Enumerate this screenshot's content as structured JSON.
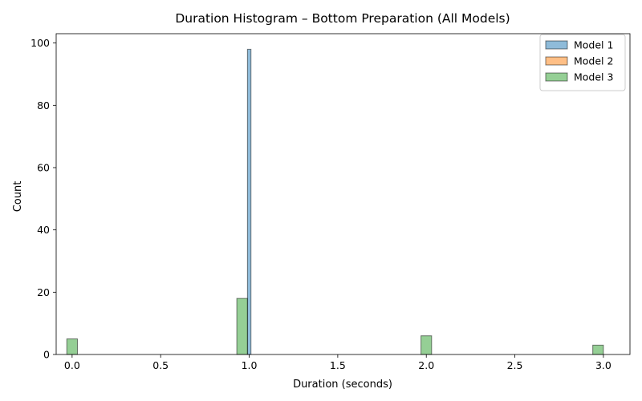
{
  "chart_data": {
    "type": "bar",
    "title": "Duration Histogram – Bottom Preparation (All Models)",
    "xlabel": "Duration (seconds)",
    "ylabel": "Count",
    "xlim": [
      -0.09,
      3.15
    ],
    "ylim": [
      0,
      103
    ],
    "xticks": [
      "0.0",
      "0.5",
      "1.0",
      "1.5",
      "2.0",
      "2.5",
      "3.0"
    ],
    "yticks": [
      "0",
      "20",
      "40",
      "60",
      "80",
      "100"
    ],
    "legend_position": "top-right",
    "grid": false,
    "series": [
      {
        "name": "Model 1",
        "color": "#1f77b4",
        "bin_width": 0.02,
        "bins": [
          {
            "x": 1.0,
            "count": 98
          }
        ]
      },
      {
        "name": "Model 2",
        "color": "#ff7f0e",
        "bin_width": 0.06,
        "bins": []
      },
      {
        "name": "Model 3",
        "color": "#2ca02c",
        "bin_width": 0.06,
        "bins": [
          {
            "x": 0.0,
            "count": 5
          },
          {
            "x": 0.96,
            "count": 18
          },
          {
            "x": 2.0,
            "count": 6
          },
          {
            "x": 2.97,
            "count": 3
          }
        ]
      }
    ],
    "legend": [
      "Model 1",
      "Model 2",
      "Model 3"
    ]
  }
}
